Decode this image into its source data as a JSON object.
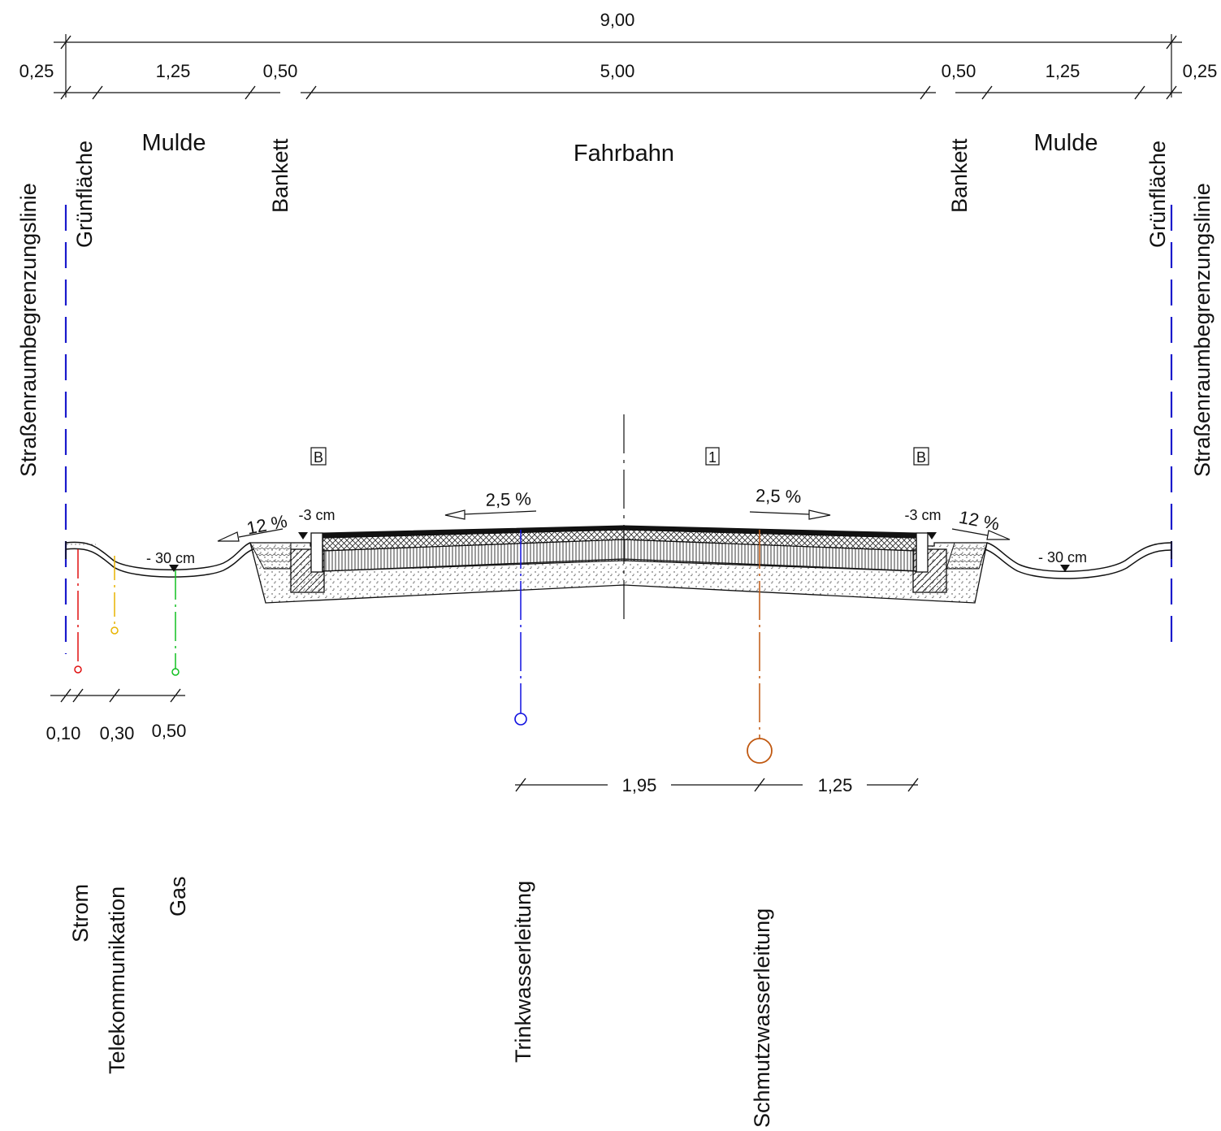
{
  "dimensions_top": {
    "total": "9,00",
    "left_margin": "0,25",
    "right_margin": "0,25",
    "left_mulde": "1,25",
    "left_bankett": "0,50",
    "fahrbahn": "5,00",
    "right_bankett": "0,50",
    "right_mulde": "1,25"
  },
  "zones": {
    "mulde_left": "Mulde",
    "fahrbahn": "Fahrbahn",
    "mulde_right": "Mulde",
    "bankett_left": "Bankett",
    "bankett_right": "Bankett",
    "gruenflaeche_left": "Grünfläche",
    "gruenflaeche_right": "Grünfläche",
    "boundary_left": "Straßenraumbegrenzungslinie",
    "boundary_right": "Straßenraumbegrenzungslinie"
  },
  "markers": {
    "b_left": "B",
    "one": "1",
    "b_right": "B"
  },
  "slopes": {
    "left_fahrbahn": "2,5 %",
    "right_fahrbahn": "2,5 %",
    "left_bankett": "12 %",
    "right_bankett": "12 %",
    "left_edge": "-3 cm",
    "right_edge": "-3 cm",
    "left_mulde_depth": "- 30 cm",
    "right_mulde_depth": "- 30 cm"
  },
  "dimensions_bottom_left": {
    "strom": "0,10",
    "telekom": "0,30",
    "gas": "0,50"
  },
  "dimensions_bottom_right": {
    "trink_to_schmutz": "1,95",
    "schmutz_to_edge": "1,25"
  },
  "utilities": {
    "strom": "Strom",
    "telekom": "Telekommunikation",
    "gas": "Gas",
    "trinkwasser": "Trinkwasserleitung",
    "schmutzwasser": "Schmutzwasserleitung"
  },
  "colors": {
    "boundary": "#1a1acc",
    "strom": "#e01010",
    "telekom": "#e8b400",
    "gas": "#10c020",
    "trinkwasser": "#1010e0",
    "schmutzwasser": "#c05810"
  }
}
